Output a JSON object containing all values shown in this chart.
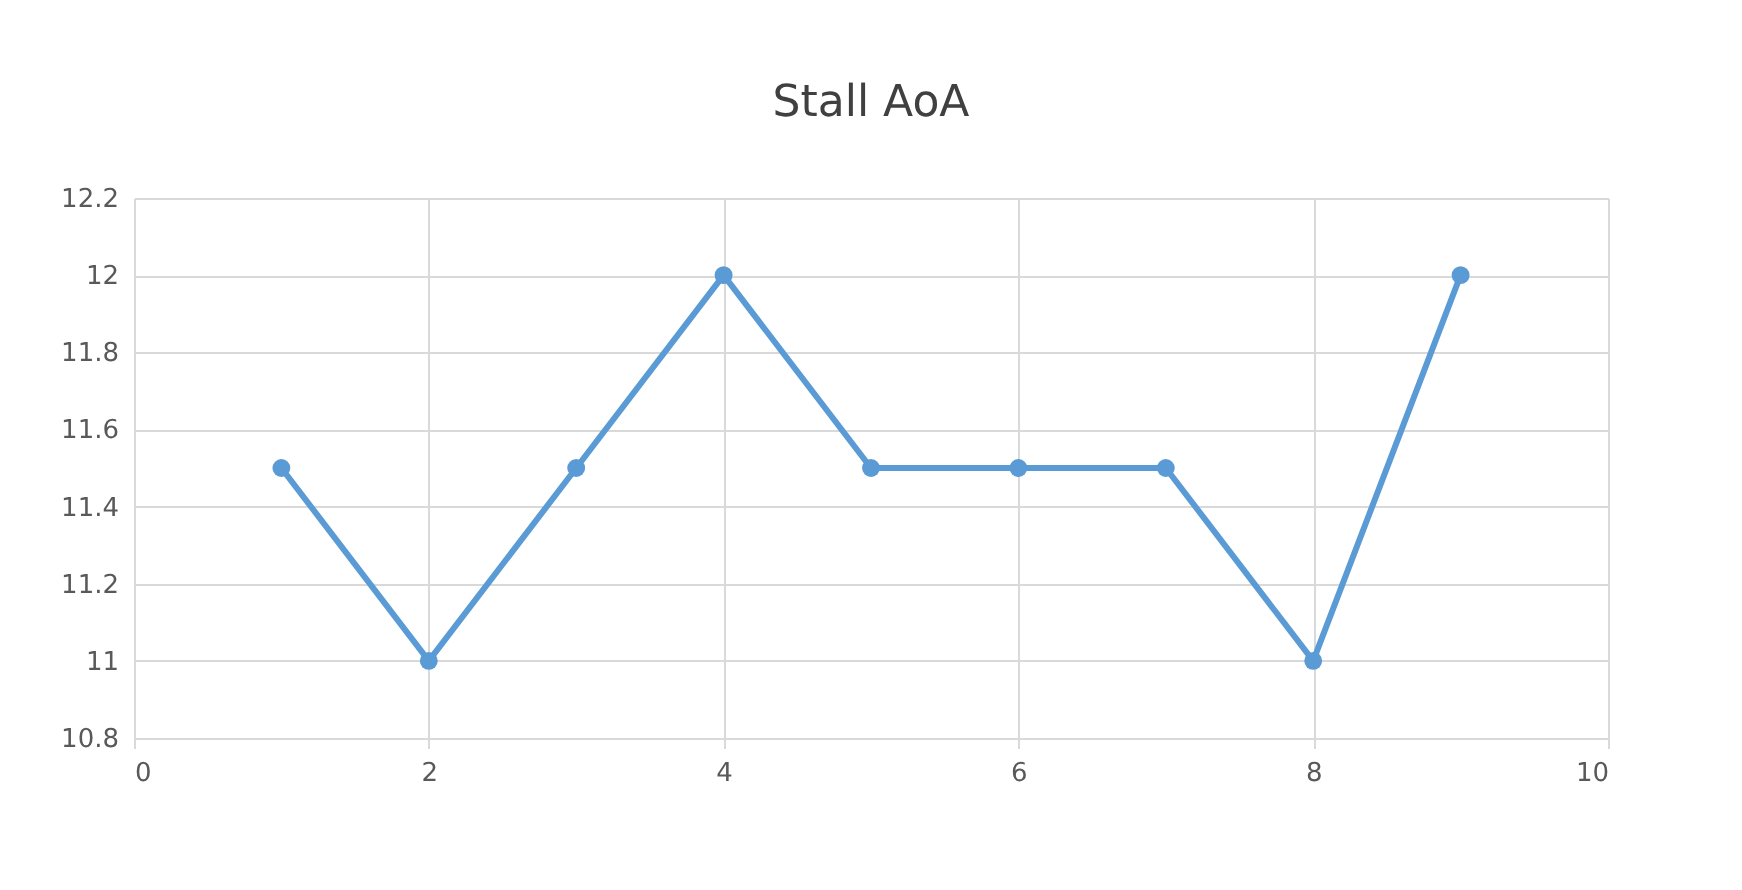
{
  "chart_data": {
    "type": "line",
    "title": "Stall AoA",
    "x": [
      1,
      2,
      3,
      4,
      5,
      6,
      7,
      8,
      9
    ],
    "series": [
      {
        "color": "#5b9bd5",
        "values": [
          11.5,
          11,
          11.5,
          12,
          11.5,
          11.5,
          11.5,
          11,
          12
        ]
      }
    ],
    "xlim": [
      0,
      10
    ],
    "xticks": [
      0,
      2,
      4,
      6,
      8,
      10
    ],
    "ylim": [
      10.8,
      12.2
    ],
    "yticks": [
      10.8,
      11,
      11.2,
      11.4,
      11.6,
      11.8,
      12,
      12.2
    ],
    "grid": true,
    "marker": "circle",
    "line_style": "solid",
    "legend": false
  }
}
